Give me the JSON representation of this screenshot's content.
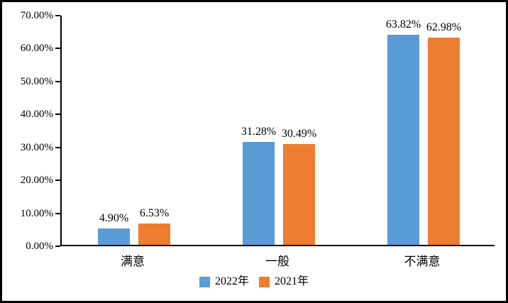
{
  "chart_data": {
    "type": "bar",
    "title": "",
    "xlabel": "",
    "ylabel": "",
    "categories": [
      "满意",
      "一般",
      "不满意"
    ],
    "series": [
      {
        "name": "2022年",
        "color": "#5B9BD5",
        "values": [
          4.9,
          31.28,
          63.82
        ],
        "data_labels": [
          "4.90%",
          "31.28%",
          "63.82%"
        ]
      },
      {
        "name": "2021年",
        "color": "#ED7D31",
        "values": [
          6.53,
          30.49,
          62.98
        ],
        "data_labels": [
          "6.53%",
          "30.49%",
          "62.98%"
        ]
      }
    ],
    "ylim": [
      0,
      70
    ],
    "y_tick_step": 10,
    "y_tick_labels": [
      "0.00%",
      "10.00%",
      "20.00%",
      "30.00%",
      "40.00%",
      "50.00%",
      "60.00%",
      "70.00%"
    ],
    "grid": false,
    "legend_position": "bottom"
  },
  "colors": {
    "axis": "#000000",
    "text": "#000000",
    "background": "#FFFFFF",
    "frame_border": "#000000",
    "series_2022": "#5B9BD5",
    "series_2021": "#ED7D31"
  }
}
